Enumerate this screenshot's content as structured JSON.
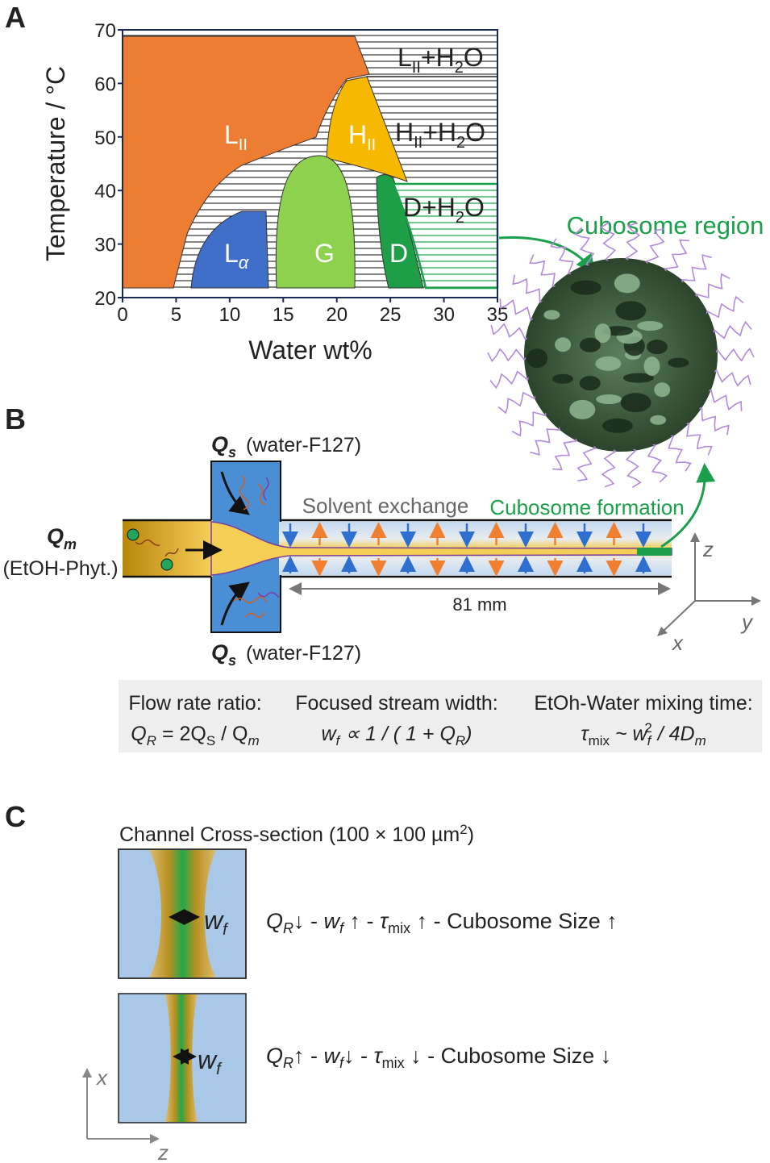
{
  "panel_a": {
    "label": "A",
    "y_axis_title": "Temperature / °C",
    "x_axis_title": "Water wt%",
    "xlim": [
      0,
      35
    ],
    "ylim": [
      20,
      70
    ],
    "xticks": [
      0,
      5,
      10,
      15,
      20,
      25,
      30,
      35
    ],
    "yticks": [
      20,
      30,
      40,
      50,
      60,
      70
    ],
    "phases": {
      "l2": [
        "L",
        "II"
      ],
      "h2": [
        "H",
        "II"
      ],
      "la": [
        "L",
        "α"
      ],
      "g": "G",
      "d": "D",
      "l2_water": [
        "L",
        "II",
        "+H",
        "2",
        "O"
      ],
      "h2_water": [
        "H",
        "II",
        "+H",
        "2",
        "O"
      ],
      "d_water": [
        "D+H",
        "2",
        "O"
      ]
    },
    "cubosome_region": "Cubosome region"
  },
  "panel_b": {
    "label": "B",
    "qs_top": [
      "Q",
      "s",
      "(water-F127)"
    ],
    "qs_bottom": [
      "Q",
      "s",
      "(water-F127)"
    ],
    "qm": [
      "Q",
      "m",
      "(EtOH-Phyt.)"
    ],
    "solvent_exchange": "Solvent exchange",
    "cubosome_formation": "Cubosome formation",
    "length": "81 mm",
    "axes": {
      "z": "z",
      "y": "y",
      "x": "x"
    },
    "info": [
      {
        "title": "Flow rate ratio:",
        "formula": [
          "Q",
          "R",
          " = 2Q",
          "S",
          " / Q",
          "m"
        ]
      },
      {
        "title": "Focused stream width:",
        "formula": [
          "w",
          "f",
          " ∝ 1 / ( 1 + Q",
          "R",
          ")"
        ]
      },
      {
        "title": "EtOh-Water mixing time:",
        "formula": [
          "τ",
          "mix",
          " ~ w",
          "f",
          "2",
          " / 4D",
          "m"
        ]
      }
    ]
  },
  "panel_c": {
    "label": "C",
    "title": [
      "Channel Cross-section (100 × 100 µm",
      "2",
      ")"
    ],
    "cross_sections": [
      {
        "width_label": [
          "w",
          "f"
        ],
        "relation": [
          "Q",
          "R",
          "↓ - ",
          "w",
          "f",
          " ↑ - ",
          "τ",
          "mix",
          " ↑ - Cubosome Size ↑"
        ]
      },
      {
        "width_label": [
          "w",
          "f"
        ],
        "relation": [
          "Q",
          "R",
          "↑ - ",
          "w",
          "f",
          "↓ - ",
          "τ",
          "mix",
          " ↓ - Cubosome Size ↓"
        ]
      }
    ],
    "axes": {
      "x": "x",
      "z": "z"
    }
  }
}
